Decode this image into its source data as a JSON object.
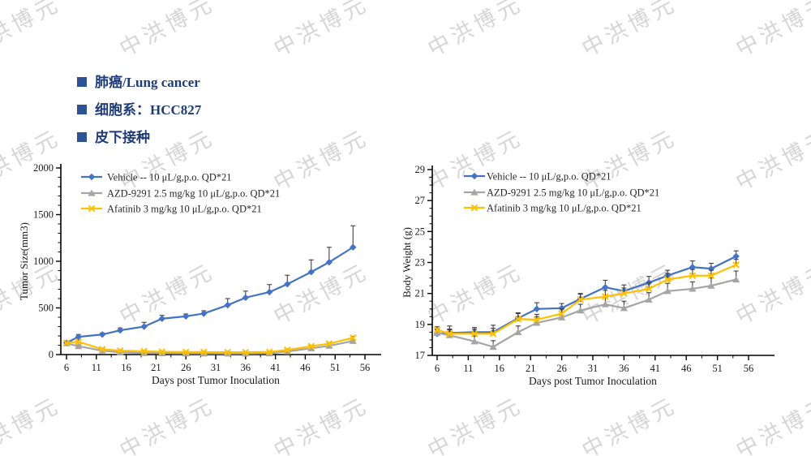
{
  "page": {
    "title_items": [
      {
        "label": "肺癌/Lung cancer"
      },
      {
        "label": "细胞系：HCC827"
      },
      {
        "label": "皮下接种"
      }
    ]
  },
  "watermark": {
    "text": "中洪博元"
  },
  "colors": {
    "vehicle_blue": "#4472C4",
    "azd_gray": "#A5A5A5",
    "afatinib_yellow": "#FFC000",
    "header_text": "#1F3C78",
    "bullet": "#2E5394",
    "error_bar": "#404040",
    "axis": "#000000",
    "watermark": "#D2D2D2"
  },
  "chart_data": [
    {
      "type": "line",
      "name": "tumor-size",
      "title": "",
      "xlabel": "Days post Tumor Inoculation",
      "ylabel": "Tumor Size(mm3)",
      "xlim": [
        6,
        56
      ],
      "ylim": [
        0,
        2000
      ],
      "xticks": [
        6,
        11,
        16,
        21,
        26,
        31,
        36,
        41,
        46,
        51,
        56
      ],
      "yticks": [
        0,
        500,
        1000,
        1500,
        2000
      ],
      "x_minor_step": 2.5,
      "y_minor_step": 100,
      "grid": false,
      "legend_position": "upper-left-inside",
      "x": [
        6,
        8,
        12,
        15,
        19,
        22,
        26,
        29,
        33,
        36,
        40,
        43,
        47,
        50,
        54
      ],
      "series": [
        {
          "name": "Vehicle -- 10 μL/g,p.o. QD*21",
          "color": "#4472C4",
          "marker": "diamond",
          "values": [
            125,
            190,
            215,
            260,
            300,
            385,
            410,
            440,
            530,
            610,
            670,
            755,
            885,
            990,
            1150
          ],
          "err": [
            20,
            25,
            15,
            25,
            45,
            35,
            25,
            30,
            70,
            70,
            80,
            95,
            130,
            160,
            230
          ]
        },
        {
          "name": "AZD-9291 2.5 mg/kg 10 μL/g,p.o. QD*21",
          "color": "#A5A5A5",
          "marker": "triangle",
          "values": [
            120,
            90,
            42,
            24,
            16,
            14,
            12,
            12,
            11,
            11,
            13,
            33,
            67,
            94,
            145
          ],
          "err": [
            15,
            12,
            8,
            6,
            5,
            4,
            4,
            4,
            4,
            4,
            5,
            8,
            10,
            12,
            15
          ]
        },
        {
          "name": "Afatinib 3 mg/kg 10 μL/g,p.o. QD*21",
          "color": "#FFC000",
          "marker": "x",
          "values": [
            125,
            138,
            57,
            42,
            36,
            30,
            27,
            27,
            25,
            25,
            28,
            49,
            90,
            117,
            180
          ],
          "err": [
            15,
            14,
            10,
            8,
            6,
            5,
            5,
            5,
            5,
            5,
            6,
            8,
            10,
            12,
            15
          ]
        }
      ]
    },
    {
      "type": "line",
      "name": "body-weight",
      "title": "",
      "xlabel": "Days post Tumor Inoculation",
      "ylabel": "Body Weight (g)",
      "xlim": [
        6,
        56
      ],
      "ylim": [
        17,
        29
      ],
      "xticks": [
        6,
        11,
        16,
        21,
        26,
        31,
        36,
        41,
        46,
        51,
        56
      ],
      "yticks": [
        17,
        19,
        21,
        23,
        25,
        27,
        29
      ],
      "x_minor_step": 2.5,
      "y_minor_step": 0.5,
      "grid": false,
      "legend_position": "upper-left-inside",
      "x": [
        6,
        8,
        12,
        15,
        19,
        22,
        26,
        29,
        33,
        36,
        40,
        43,
        47,
        50,
        54
      ],
      "series": [
        {
          "name": "Vehicle -- 10 μL/g,p.o. QD*21",
          "color": "#4472C4",
          "marker": "diamond",
          "values": [
            18.4,
            18.45,
            18.5,
            18.5,
            19.4,
            20.0,
            20.05,
            20.65,
            21.4,
            21.15,
            21.7,
            22.15,
            22.7,
            22.6,
            23.4
          ],
          "err": [
            0.25,
            0.45,
            0.3,
            0.45,
            0.35,
            0.4,
            0.3,
            0.35,
            0.45,
            0.4,
            0.4,
            0.35,
            0.4,
            0.35,
            0.35
          ]
        },
        {
          "name": "AZD-9291 2.5 mg/kg 10 μL/g,p.o. QD*21",
          "color": "#A5A5A5",
          "marker": "triangle",
          "values": [
            18.45,
            18.3,
            17.9,
            17.55,
            18.5,
            19.1,
            19.45,
            19.9,
            20.3,
            20.05,
            20.6,
            21.15,
            21.3,
            21.5,
            21.9
          ],
          "err": [
            0.25,
            0.35,
            0.35,
            0.4,
            0.4,
            0.4,
            0.35,
            0.4,
            0.45,
            0.45,
            0.45,
            0.5,
            0.45,
            0.5,
            0.55
          ]
        },
        {
          "name": "Afatinib 3 mg/kg 10 μL/g,p.o. QD*21",
          "color": "#FFC000",
          "marker": "x",
          "values": [
            18.65,
            18.4,
            18.4,
            18.4,
            19.35,
            19.3,
            19.7,
            20.6,
            20.8,
            21.0,
            21.3,
            21.9,
            22.15,
            22.15,
            22.85
          ],
          "err": [
            0.2,
            0.3,
            0.3,
            0.35,
            0.35,
            0.35,
            0.3,
            0.35,
            0.4,
            0.35,
            0.4,
            0.4,
            0.4,
            0.35,
            0.35
          ]
        }
      ]
    }
  ]
}
